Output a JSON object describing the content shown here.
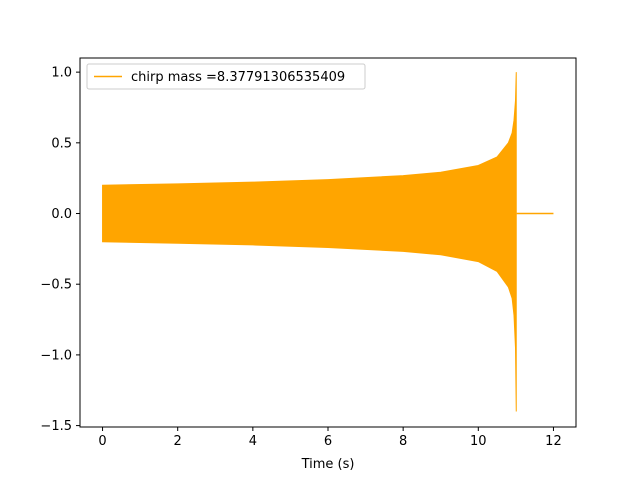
{
  "chart_data": {
    "type": "line",
    "xlabel": "Time (s)",
    "ylabel": "",
    "xlim": [
      -0.6,
      12.6
    ],
    "ylim": [
      -1.51,
      1.1
    ],
    "x_ticks": [
      0,
      2,
      4,
      6,
      8,
      10,
      12
    ],
    "y_ticks": [
      1.0,
      0.5,
      0.0,
      -0.5,
      -1.0,
      -1.5
    ],
    "x_tick_labels": [
      "0",
      "2",
      "4",
      "6",
      "8",
      "10",
      "12"
    ],
    "y_tick_labels": [
      "1.0",
      "0.5",
      "0.0",
      "−0.5",
      "−1.0",
      "−1.5"
    ],
    "grid": false,
    "legend_position": "top-left",
    "series": [
      {
        "name": "chirp mass =8.37791306535409",
        "color": "#ffa500",
        "envelope_upper": [
          [
            0.0,
            0.2
          ],
          [
            2.0,
            0.21
          ],
          [
            4.0,
            0.222
          ],
          [
            6.0,
            0.24
          ],
          [
            8.0,
            0.268
          ],
          [
            9.0,
            0.292
          ],
          [
            10.0,
            0.34
          ],
          [
            10.5,
            0.4
          ],
          [
            10.8,
            0.5
          ],
          [
            10.9,
            0.57
          ],
          [
            10.95,
            0.66
          ],
          [
            10.99,
            0.8
          ],
          [
            11.01,
            1.0
          ]
        ],
        "envelope_lower": [
          [
            0.0,
            -0.2
          ],
          [
            2.0,
            -0.21
          ],
          [
            4.0,
            -0.222
          ],
          [
            6.0,
            -0.24
          ],
          [
            8.0,
            -0.268
          ],
          [
            9.0,
            -0.292
          ],
          [
            10.0,
            -0.34
          ],
          [
            10.5,
            -0.41
          ],
          [
            10.8,
            -0.52
          ],
          [
            10.9,
            -0.6
          ],
          [
            10.95,
            -0.72
          ],
          [
            10.99,
            -0.95
          ],
          [
            11.01,
            -1.4
          ]
        ],
        "tail": [
          [
            11.02,
            0.0
          ],
          [
            12.0,
            0.0
          ]
        ]
      }
    ]
  }
}
